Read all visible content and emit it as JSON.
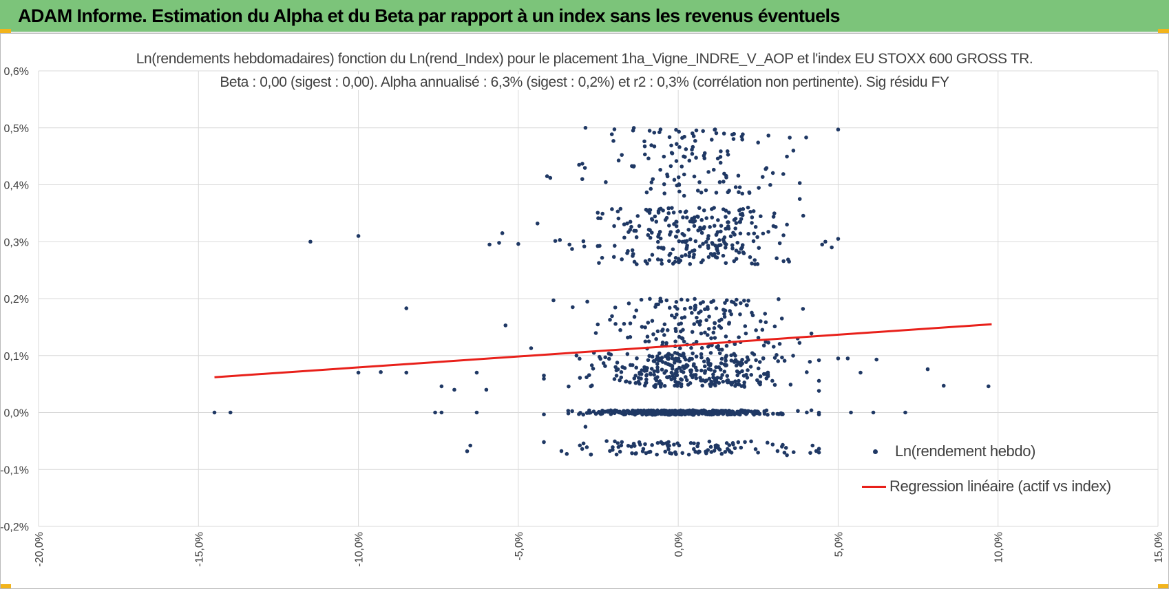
{
  "header": {
    "title": "ADAM Informe. Estimation du Alpha et du Beta par rapport à un index sans les revenus éventuels"
  },
  "colors": {
    "header_bg": "#7cc47a",
    "accent_corners": "#f2b41c",
    "scatter": "#1f3864",
    "regression": "#e8201a",
    "grid": "#d9d9d9"
  },
  "chart_data": {
    "type": "scatter",
    "title": "Ln(rendements hebdomadaires) fonction du Ln(rend_Index) pour le placement 1ha_Vigne_INDRE_V_AOP et l'index EU STOXX 600 GROSS TR.",
    "subtitle": "Beta : 0,00 (sigest : 0,00). Alpha annualisé : 6,3% (sigest : 0,2%) et r2 : 0,3% (corrélation non pertinente). Sig résidu FY",
    "xlabel": "",
    "ylabel": "",
    "xlim": [
      -20,
      15
    ],
    "ylim": [
      -0.2,
      0.6
    ],
    "x_ticks": [
      -20,
      -15,
      -10,
      -5,
      0,
      5,
      10,
      15
    ],
    "x_tick_labels": [
      "-20,0%",
      "-15,0%",
      "-10,0%",
      "-5,0%",
      "0,0%",
      "5,0%",
      "10,0%",
      "15,0%"
    ],
    "y_ticks": [
      0.6,
      0.5,
      0.4,
      0.3,
      0.2,
      0.1,
      0.0,
      -0.1,
      -0.2
    ],
    "y_tick_labels": [
      "0,6%",
      "0,5%",
      "0,4%",
      "0,3%",
      "0,2%",
      "0,1%",
      "0,0%",
      "-0,1%",
      "-0,2%"
    ],
    "grid": true,
    "legend_position": "bottom-right",
    "series": [
      {
        "name": "Ln(rendement hebdo)",
        "type": "scatter",
        "color": "#1f3864",
        "clusters": [
          {
            "y_center": 0.0,
            "y_spread": 0.004,
            "x_mean": 0.2,
            "x_sd": 1.5,
            "count": 380
          },
          {
            "y_center": 0.075,
            "y_spread": 0.03,
            "x_mean": 0.2,
            "x_sd": 1.6,
            "count": 320
          },
          {
            "y_center": 0.155,
            "y_spread": 0.045,
            "x_mean": 0.4,
            "x_sd": 1.4,
            "count": 170
          },
          {
            "y_center": 0.31,
            "y_spread": 0.05,
            "x_mean": 0.4,
            "x_sd": 1.5,
            "count": 260
          },
          {
            "y_center": 0.44,
            "y_spread": 0.06,
            "x_mean": 0.4,
            "x_sd": 1.4,
            "count": 120
          },
          {
            "y_center": -0.062,
            "y_spread": 0.012,
            "x_mean": 0.2,
            "x_sd": 1.9,
            "count": 110
          }
        ],
        "outliers": [
          [
            -14.5,
            0.0
          ],
          [
            -14.0,
            0.0
          ],
          [
            -11.5,
            0.3
          ],
          [
            -10.0,
            0.31
          ],
          [
            -10.0,
            0.07
          ],
          [
            -9.3,
            0.071
          ],
          [
            -8.5,
            0.07
          ],
          [
            -8.5,
            0.183
          ],
          [
            -7.6,
            0.0
          ],
          [
            -7.4,
            0.0
          ],
          [
            -7.4,
            0.046
          ],
          [
            -7.0,
            0.04
          ],
          [
            -6.6,
            -0.068
          ],
          [
            -6.5,
            -0.058
          ],
          [
            -6.3,
            0.0
          ],
          [
            -6.3,
            0.07
          ],
          [
            -6.0,
            0.04
          ],
          [
            -5.9,
            0.295
          ],
          [
            -5.6,
            0.298
          ],
          [
            -5.5,
            0.315
          ],
          [
            -5.4,
            0.153
          ],
          [
            -5.0,
            0.296
          ],
          [
            -4.6,
            0.113
          ],
          [
            -4.4,
            0.332
          ],
          [
            -4.1,
            0.415
          ],
          [
            -4.0,
            0.412
          ],
          [
            -3.7,
            0.303
          ],
          [
            -3.4,
            0.295
          ],
          [
            -3.3,
            0.185
          ],
          [
            -3.1,
            0.435
          ],
          [
            -3.0,
            0.41
          ],
          [
            -2.9,
            -0.025
          ],
          [
            -2.9,
            0.5
          ],
          [
            -3.9,
            0.197
          ],
          [
            3.8,
            0.375
          ],
          [
            3.8,
            0.403
          ],
          [
            3.9,
            0.182
          ],
          [
            4.0,
            0.483
          ],
          [
            4.2,
            -0.058
          ],
          [
            4.4,
            0.038
          ],
          [
            4.5,
            0.295
          ],
          [
            4.8,
            0.29
          ],
          [
            5.0,
            0.497
          ],
          [
            5.0,
            0.305
          ],
          [
            5.0,
            0.095
          ],
          [
            5.3,
            0.095
          ],
          [
            5.4,
            0.0
          ],
          [
            5.7,
            0.07
          ],
          [
            6.1,
            0.0
          ],
          [
            6.2,
            0.093
          ],
          [
            7.1,
            0.0
          ],
          [
            7.8,
            0.076
          ],
          [
            8.3,
            0.047
          ],
          [
            9.7,
            0.046
          ],
          [
            3.4,
            -0.075
          ],
          [
            3.6,
            0.46
          ],
          [
            3.4,
            0.33
          ],
          [
            4.6,
            0.3
          ]
        ]
      },
      {
        "name": "Regression linéaire (actif vs index)",
        "type": "line",
        "color": "#e8201a",
        "points": [
          [
            -14.5,
            0.062
          ],
          [
            9.8,
            0.155
          ]
        ]
      }
    ]
  }
}
